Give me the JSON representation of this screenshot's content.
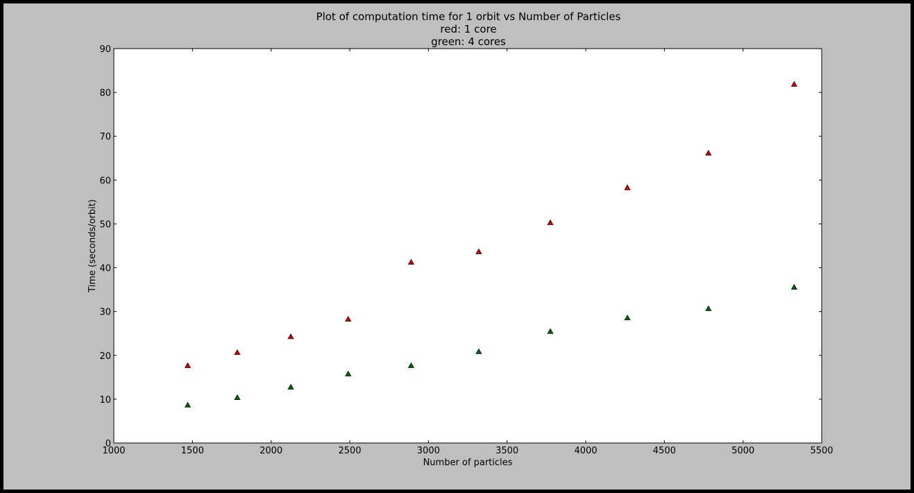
{
  "chart_data": {
    "type": "scatter",
    "title_lines": [
      "Plot of computation time for 1 orbit vs Number of Particles",
      "red: 1 core",
      "green: 4 cores"
    ],
    "xlabel": "Number of particles",
    "ylabel": "Time (seconds/orbit)",
    "xlim": [
      1000,
      5500
    ],
    "ylim": [
      0,
      90
    ],
    "x_ticks": [
      1000,
      1500,
      2000,
      2500,
      3000,
      3500,
      4000,
      4500,
      5000,
      5500
    ],
    "y_ticks": [
      0,
      10,
      20,
      30,
      40,
      50,
      60,
      70,
      80,
      90
    ],
    "grid": false,
    "marker": "triangle-up",
    "series": [
      {
        "color": "#cc0000",
        "x": [
          1470,
          1785,
          2125,
          2490,
          2890,
          3320,
          3775,
          4265,
          4780,
          5325
        ],
        "y": [
          17.6,
          20.6,
          24.2,
          28.2,
          41.2,
          43.6,
          50.2,
          58.2,
          66.1,
          81.8
        ]
      },
      {
        "color": "#006400",
        "x": [
          1470,
          1785,
          2125,
          2490,
          2890,
          3320,
          3775,
          4265,
          4780,
          5325
        ],
        "y": [
          8.6,
          10.3,
          12.7,
          15.7,
          17.6,
          20.8,
          25.4,
          28.5,
          30.6,
          35.5
        ]
      }
    ]
  }
}
